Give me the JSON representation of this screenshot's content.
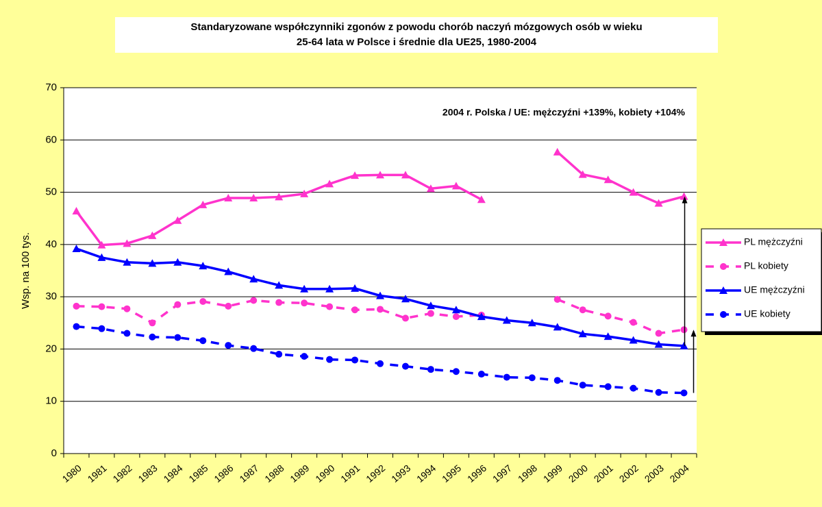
{
  "chart_data": {
    "type": "line",
    "title": [
      "Standaryzowane współczynniki zgonów z powodu chorób naczyń mózgowych osób w wieku",
      "25-64 lata w Polsce i średnie dla UE25, 1980-2004"
    ],
    "annotation": "2004 r.  Polska / UE: mężczyźni +139%, kobiety +104%",
    "y_label": "Wsp. na 100 tys.",
    "categories": [
      "1980",
      "1981",
      "1982",
      "1983",
      "1984",
      "1985",
      "1986",
      "1987",
      "1988",
      "1989",
      "1990",
      "1991",
      "1992",
      "1993",
      "1994",
      "1995",
      "1996",
      "1997",
      "1998",
      "1999",
      "2000",
      "2001",
      "2002",
      "2003",
      "2004"
    ],
    "series": [
      {
        "name": "PL mężczyźni",
        "color": "#ff33cc",
        "marker": "triangle",
        "dashed": false,
        "values": [
          46.4,
          39.9,
          40.2,
          41.7,
          44.6,
          47.6,
          48.9,
          48.9,
          49.1,
          49.7,
          51.6,
          53.2,
          53.3,
          53.3,
          50.7,
          51.2,
          48.6,
          null,
          null,
          57.7,
          53.4,
          52.4,
          50.0,
          47.9,
          49.2
        ]
      },
      {
        "name": "PL kobiety",
        "color": "#ff33cc",
        "marker": "circle",
        "dashed": true,
        "values": [
          28.2,
          28.1,
          27.7,
          25.0,
          28.5,
          29.1,
          28.2,
          29.3,
          28.9,
          28.8,
          28.1,
          27.5,
          27.6,
          25.9,
          26.8,
          26.2,
          26.5,
          null,
          null,
          29.5,
          27.5,
          26.3,
          25.1,
          23.0,
          23.7
        ]
      },
      {
        "name": "UE mężczyźni",
        "color": "#0000ff",
        "marker": "triangle",
        "dashed": false,
        "values": [
          39.2,
          37.5,
          36.6,
          36.4,
          36.6,
          35.9,
          34.8,
          33.4,
          32.2,
          31.5,
          31.5,
          31.6,
          30.2,
          29.6,
          28.3,
          27.5,
          26.2,
          25.5,
          25.0,
          24.2,
          22.9,
          22.4,
          21.7,
          20.9,
          20.6
        ]
      },
      {
        "name": "UE kobiety",
        "color": "#0000ff",
        "marker": "circle",
        "dashed": true,
        "values": [
          24.3,
          23.9,
          23.0,
          22.3,
          22.2,
          21.6,
          20.7,
          20.1,
          19.0,
          18.6,
          18.0,
          17.9,
          17.2,
          16.7,
          16.1,
          15.7,
          15.2,
          14.6,
          14.5,
          14.0,
          13.1,
          12.8,
          12.5,
          11.7,
          11.6
        ]
      }
    ],
    "ylim": [
      0,
      70
    ],
    "yticks": [
      0,
      10,
      20,
      30,
      40,
      50,
      60,
      70
    ],
    "grid": true,
    "legend": "right"
  }
}
